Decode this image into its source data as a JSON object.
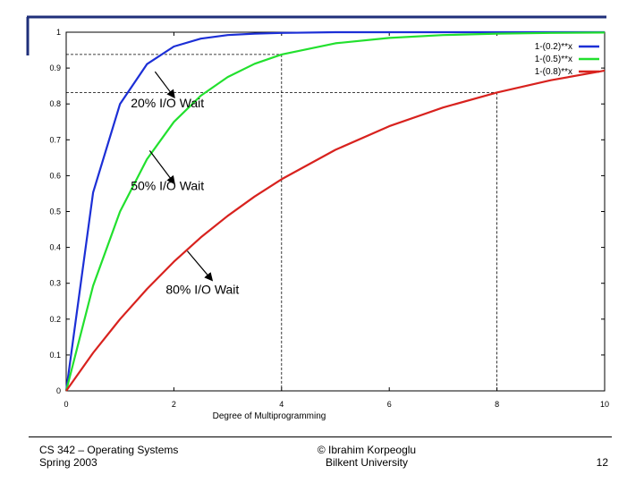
{
  "colors": {
    "frame": "#1f2f7a",
    "blue": "#1c2fd6",
    "green": "#22e02e",
    "red": "#d8221e",
    "guide": "#000000"
  },
  "chart_data": {
    "type": "line",
    "title": "",
    "xlabel": "Degree of Multiprogramming",
    "ylabel": "",
    "xlim": [
      0,
      10
    ],
    "ylim": [
      0,
      1
    ],
    "x_ticks": [
      "0",
      "2",
      "4",
      "6",
      "8",
      "10"
    ],
    "y_ticks": [
      "0",
      "0.1",
      "0.2",
      "0.3",
      "0.4",
      "0.5",
      "0.6",
      "0.7",
      "0.8",
      "0.9",
      "1"
    ],
    "x": [
      0,
      0.5,
      1,
      1.5,
      2,
      2.5,
      3,
      3.5,
      4,
      5,
      6,
      7,
      8,
      9,
      10
    ],
    "series": [
      {
        "name": "1-(0.2)**x",
        "color": "#1c2fd6",
        "values": [
          0,
          0.553,
          0.8,
          0.911,
          0.96,
          0.982,
          0.992,
          0.996,
          0.998,
          1.0,
          1.0,
          1.0,
          1.0,
          1.0,
          1.0
        ]
      },
      {
        "name": "1-(0.5)**x",
        "color": "#22e02e",
        "values": [
          0,
          0.293,
          0.5,
          0.646,
          0.75,
          0.823,
          0.875,
          0.912,
          0.938,
          0.969,
          0.984,
          0.992,
          0.996,
          0.998,
          0.999
        ]
      },
      {
        "name": "1-(0.8)**x",
        "color": "#d8221e",
        "values": [
          0,
          0.106,
          0.2,
          0.284,
          0.36,
          0.428,
          0.488,
          0.542,
          0.59,
          0.672,
          0.738,
          0.79,
          0.832,
          0.866,
          0.893
        ]
      }
    ],
    "guide_lines": [
      {
        "x": 4,
        "y": 0.938
      },
      {
        "x": 8,
        "y": 0.832
      }
    ],
    "annotations": [
      {
        "text": "20% I/O Wait",
        "arrow_from": [
          1.65,
          0.89
        ],
        "arrow_to": [
          2.0,
          0.82
        ],
        "text_at": [
          1.2,
          0.79
        ]
      },
      {
        "text": "50% I/O Wait",
        "arrow_from": [
          1.55,
          0.67
        ],
        "arrow_to": [
          2.0,
          0.58
        ],
        "text_at": [
          1.2,
          0.56
        ]
      },
      {
        "text": "80% I/O Wait",
        "arrow_from": [
          2.25,
          0.39
        ],
        "arrow_to": [
          2.7,
          0.31
        ],
        "text_at": [
          1.85,
          0.27
        ]
      }
    ],
    "legend": "top-right",
    "grid": false
  },
  "footer": {
    "course": "CS 342 – Operating Systems",
    "term": "Spring 2003",
    "author": "© Ibrahim Korpeoglu",
    "institution": "Bilkent University",
    "page": "12"
  }
}
